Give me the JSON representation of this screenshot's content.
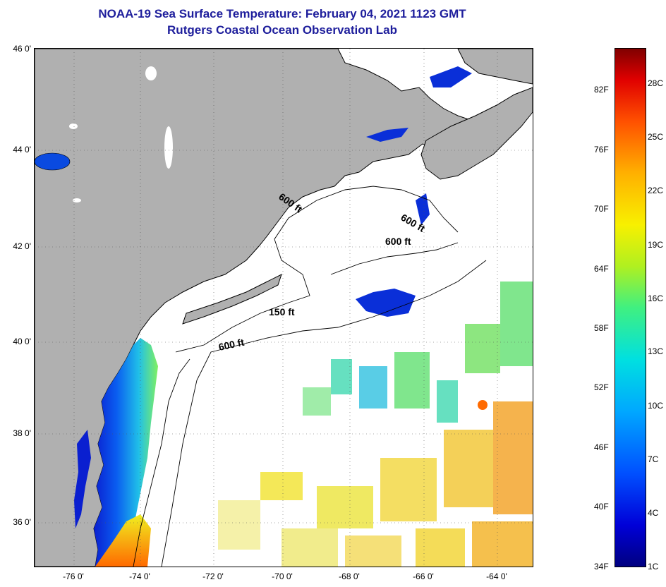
{
  "header": {
    "title": "NOAA-19 Sea Surface Temperature:  February 04, 2021 1123 GMT",
    "subtitle": "Rutgers Coastal Ocean Observation Lab"
  },
  "map": {
    "lat_labels": [
      "46 0'",
      "44 0'",
      "42 0'",
      "40 0'",
      "38 0'",
      "36 0'"
    ],
    "lon_labels": [
      "-76 0'",
      "-74 0'",
      "-72 0'",
      "-70 0'",
      "-68 0'",
      "-66 0'",
      "-64 0'"
    ],
    "depth_labels": [
      "600 ft",
      "600 ft",
      "600 ft",
      "150 ft",
      "600 ft"
    ],
    "colors": {
      "land": "#b0b0b0",
      "cloud": "#ffffff",
      "cold": "#0a2fd8",
      "warm": "#f2a020"
    }
  },
  "colorbar": {
    "fahrenheit": [
      "82F",
      "76F",
      "70F",
      "64F",
      "58F",
      "52F",
      "46F",
      "40F",
      "34F"
    ],
    "celsius": [
      "28C",
      "25C",
      "22C",
      "19C",
      "16C",
      "13C",
      "10C",
      "7C",
      "4C",
      "1C"
    ]
  }
}
